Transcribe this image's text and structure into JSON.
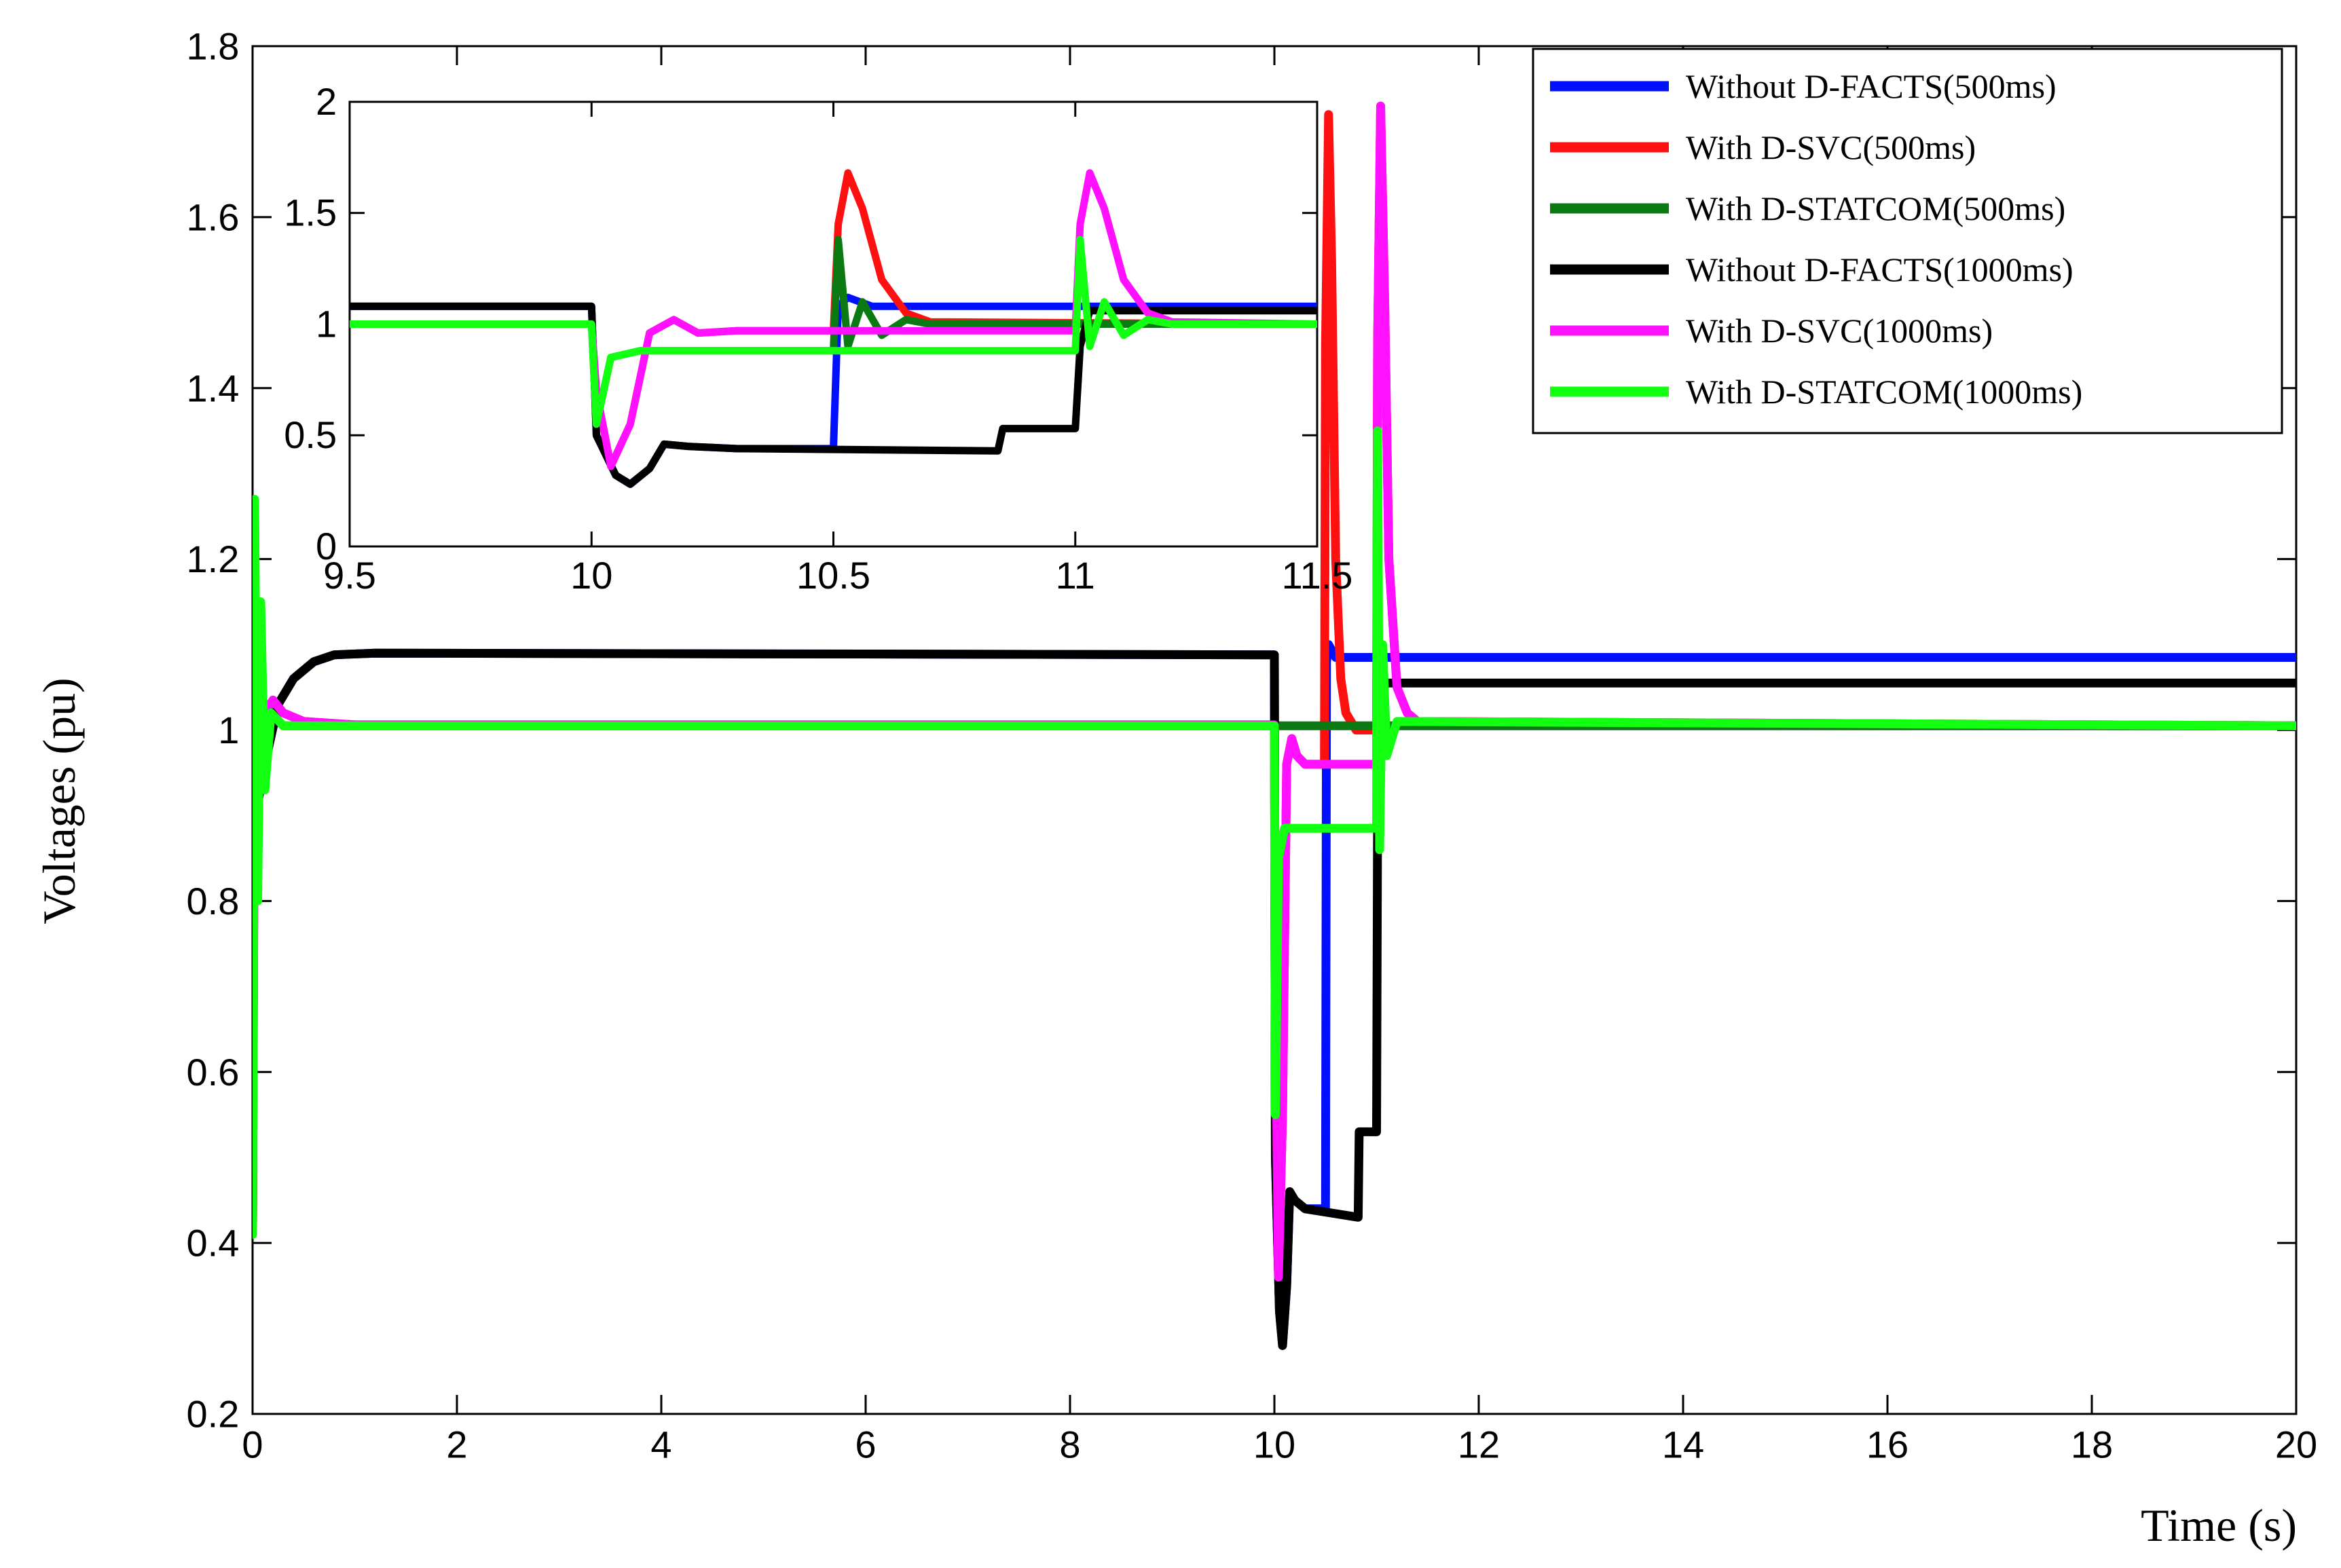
{
  "chart_data": {
    "type": "line",
    "xlabel": "Time (s)",
    "ylabel": "Voltages (pu)",
    "xlim": [
      0,
      20
    ],
    "ylim": [
      0.2,
      1.8
    ],
    "xticks": [
      0,
      2,
      4,
      6,
      8,
      10,
      12,
      14,
      16,
      18,
      20
    ],
    "yticks": [
      0.2,
      0.4,
      0.6,
      0.8,
      1,
      1.2,
      1.4,
      1.6,
      1.8
    ],
    "grid": false,
    "legend_position": "top-right",
    "series": [
      {
        "name": "Without D-FACTS(500ms)",
        "color": "#0010ff",
        "points": [
          [
            0,
            0.42
          ],
          [
            0.02,
            1.2
          ],
          [
            0.06,
            0.92
          ],
          [
            0.12,
            0.96
          ],
          [
            0.25,
            1.03
          ],
          [
            0.4,
            1.06
          ],
          [
            0.6,
            1.08
          ],
          [
            0.8,
            1.088
          ],
          [
            1.2,
            1.09
          ],
          [
            10.0,
            1.088
          ],
          [
            10.01,
            0.5
          ],
          [
            10.05,
            0.32
          ],
          [
            10.08,
            0.28
          ],
          [
            10.12,
            0.35
          ],
          [
            10.15,
            0.46
          ],
          [
            10.2,
            0.45
          ],
          [
            10.3,
            0.44
          ],
          [
            10.49,
            0.44
          ],
          [
            10.5,
            0.44
          ],
          [
            10.51,
            1.08
          ],
          [
            10.53,
            1.1
          ],
          [
            10.6,
            1.085
          ],
          [
            20,
            1.085
          ]
        ]
      },
      {
        "name": "With D-SVC(500ms)",
        "color": "#ff1010",
        "points": [
          [
            0,
            0.42
          ],
          [
            0.02,
            1.05
          ],
          [
            0.06,
            0.98
          ],
          [
            0.12,
            1.02
          ],
          [
            0.2,
            1.035
          ],
          [
            0.3,
            1.02
          ],
          [
            0.5,
            1.01
          ],
          [
            1.0,
            1.006
          ],
          [
            10.0,
            1.006
          ],
          [
            10.01,
            0.7
          ],
          [
            10.04,
            0.36
          ],
          [
            10.08,
            0.55
          ],
          [
            10.12,
            0.96
          ],
          [
            10.17,
            0.99
          ],
          [
            10.22,
            0.97
          ],
          [
            10.3,
            0.96
          ],
          [
            10.49,
            0.96
          ],
          [
            10.5,
            1.45
          ],
          [
            10.53,
            1.72
          ],
          [
            10.56,
            1.55
          ],
          [
            10.6,
            1.2
          ],
          [
            10.65,
            1.06
          ],
          [
            10.7,
            1.02
          ],
          [
            10.8,
            1.0
          ],
          [
            11.0,
            1.0
          ],
          [
            11.01,
            1.45
          ],
          [
            11.04,
            1.73
          ],
          [
            11.08,
            1.5
          ],
          [
            11.12,
            1.2
          ],
          [
            11.2,
            1.05
          ],
          [
            11.3,
            1.02
          ],
          [
            11.4,
            1.01
          ],
          [
            20,
            1.005
          ]
        ]
      },
      {
        "name": "With D-STATCOM(500ms)",
        "color": "#0b7a12",
        "points": [
          [
            0,
            0.42
          ],
          [
            0.02,
            1.25
          ],
          [
            0.05,
            0.82
          ],
          [
            0.08,
            1.12
          ],
          [
            0.12,
            0.95
          ],
          [
            0.18,
            1.02
          ],
          [
            0.3,
            1.005
          ],
          [
            20,
            1.005
          ]
        ]
      },
      {
        "name": "Without D-FACTS(1000ms)",
        "color": "#000000",
        "points": [
          [
            0,
            0.42
          ],
          [
            0.02,
            1.2
          ],
          [
            0.06,
            0.92
          ],
          [
            0.12,
            0.96
          ],
          [
            0.25,
            1.03
          ],
          [
            0.4,
            1.06
          ],
          [
            0.6,
            1.08
          ],
          [
            0.8,
            1.088
          ],
          [
            1.2,
            1.09
          ],
          [
            10.0,
            1.088
          ],
          [
            10.01,
            0.5
          ],
          [
            10.05,
            0.32
          ],
          [
            10.08,
            0.28
          ],
          [
            10.12,
            0.35
          ],
          [
            10.15,
            0.46
          ],
          [
            10.2,
            0.45
          ],
          [
            10.3,
            0.44
          ],
          [
            10.82,
            0.43
          ],
          [
            10.83,
            0.53
          ],
          [
            11.0,
            0.53
          ],
          [
            11.01,
            0.9
          ],
          [
            11.03,
            1.06
          ],
          [
            11.1,
            1.055
          ],
          [
            20,
            1.055
          ]
        ]
      },
      {
        "name": "With D-SVC(1000ms)",
        "color": "#ff10ff",
        "points": [
          [
            0,
            0.41
          ],
          [
            0.02,
            1.05
          ],
          [
            0.06,
            0.98
          ],
          [
            0.12,
            1.02
          ],
          [
            0.2,
            1.035
          ],
          [
            0.3,
            1.02
          ],
          [
            0.5,
            1.01
          ],
          [
            1.0,
            1.006
          ],
          [
            10.0,
            1.006
          ],
          [
            10.01,
            0.7
          ],
          [
            10.04,
            0.36
          ],
          [
            10.08,
            0.55
          ],
          [
            10.12,
            0.96
          ],
          [
            10.17,
            0.99
          ],
          [
            10.22,
            0.97
          ],
          [
            10.3,
            0.96
          ],
          [
            11.0,
            0.96
          ],
          [
            11.01,
            1.45
          ],
          [
            11.04,
            1.73
          ],
          [
            11.08,
            1.5
          ],
          [
            11.12,
            1.2
          ],
          [
            11.2,
            1.05
          ],
          [
            11.3,
            1.02
          ],
          [
            11.4,
            1.01
          ],
          [
            20,
            1.005
          ]
        ]
      },
      {
        "name": "With D-STATCOM(1000ms)",
        "color": "#12ff12",
        "points": [
          [
            0,
            0.41
          ],
          [
            0.02,
            1.27
          ],
          [
            0.05,
            0.8
          ],
          [
            0.08,
            1.15
          ],
          [
            0.12,
            0.93
          ],
          [
            0.18,
            1.02
          ],
          [
            0.3,
            1.005
          ],
          [
            10.0,
            1.005
          ],
          [
            10.01,
            0.55
          ],
          [
            10.04,
            0.85
          ],
          [
            10.1,
            0.885
          ],
          [
            11.0,
            0.885
          ],
          [
            11.01,
            1.35
          ],
          [
            11.03,
            0.86
          ],
          [
            11.06,
            1.1
          ],
          [
            11.1,
            0.97
          ],
          [
            11.2,
            1.01
          ],
          [
            20,
            1.005
          ]
        ]
      }
    ],
    "inset": {
      "xlim": [
        9.5,
        11.5
      ],
      "ylim": [
        0,
        2
      ],
      "xticks": [
        9.5,
        10,
        10.5,
        11,
        11.5
      ],
      "yticks": [
        0,
        0.5,
        1,
        1.5,
        2
      ],
      "series": [
        {
          "name": "Without D-FACTS(500ms)",
          "color": "#0010ff",
          "points": [
            [
              9.5,
              1.08
            ],
            [
              10.0,
              1.08
            ],
            [
              10.01,
              0.5
            ],
            [
              10.05,
              0.32
            ],
            [
              10.08,
              0.28
            ],
            [
              10.12,
              0.35
            ],
            [
              10.15,
              0.46
            ],
            [
              10.2,
              0.45
            ],
            [
              10.3,
              0.44
            ],
            [
              10.5,
              0.44
            ],
            [
              10.51,
              1.08
            ],
            [
              10.53,
              1.12
            ],
            [
              10.58,
              1.08
            ],
            [
              11.5,
              1.08
            ]
          ]
        },
        {
          "name": "With D-SVC(500ms)",
          "color": "#ff1010",
          "points": [
            [
              9.5,
              1.0
            ],
            [
              10.0,
              1.0
            ],
            [
              10.01,
              0.7
            ],
            [
              10.04,
              0.36
            ],
            [
              10.08,
              0.55
            ],
            [
              10.12,
              0.96
            ],
            [
              10.17,
              1.02
            ],
            [
              10.22,
              0.96
            ],
            [
              10.3,
              0.97
            ],
            [
              10.5,
              0.97
            ],
            [
              10.51,
              1.45
            ],
            [
              10.53,
              1.68
            ],
            [
              10.56,
              1.52
            ],
            [
              10.6,
              1.2
            ],
            [
              10.65,
              1.05
            ],
            [
              10.7,
              1.01
            ],
            [
              11.5,
              1.0
            ]
          ]
        },
        {
          "name": "With D-STATCOM(500ms)",
          "color": "#0b7a12",
          "points": [
            [
              9.5,
              1.0
            ],
            [
              10.0,
              1.0
            ],
            [
              10.01,
              0.55
            ],
            [
              10.04,
              0.85
            ],
            [
              10.1,
              0.88
            ],
            [
              10.5,
              0.88
            ],
            [
              10.51,
              1.38
            ],
            [
              10.53,
              0.9
            ],
            [
              10.56,
              1.1
            ],
            [
              10.6,
              0.95
            ],
            [
              10.65,
              1.02
            ],
            [
              10.7,
              1.0
            ],
            [
              11.5,
              1.0
            ]
          ]
        },
        {
          "name": "Without D-FACTS(1000ms)",
          "color": "#000000",
          "points": [
            [
              9.5,
              1.08
            ],
            [
              10.0,
              1.08
            ],
            [
              10.01,
              0.5
            ],
            [
              10.05,
              0.32
            ],
            [
              10.08,
              0.28
            ],
            [
              10.12,
              0.35
            ],
            [
              10.15,
              0.46
            ],
            [
              10.2,
              0.45
            ],
            [
              10.3,
              0.44
            ],
            [
              10.84,
              0.43
            ],
            [
              10.85,
              0.53
            ],
            [
              11.0,
              0.53
            ],
            [
              11.01,
              0.9
            ],
            [
              11.03,
              1.06
            ],
            [
              11.5,
              1.06
            ]
          ]
        },
        {
          "name": "With D-SVC(1000ms)",
          "color": "#ff10ff",
          "points": [
            [
              9.5,
              1.0
            ],
            [
              10.0,
              1.0
            ],
            [
              10.01,
              0.7
            ],
            [
              10.04,
              0.36
            ],
            [
              10.08,
              0.55
            ],
            [
              10.12,
              0.96
            ],
            [
              10.17,
              1.02
            ],
            [
              10.22,
              0.96
            ],
            [
              10.3,
              0.97
            ],
            [
              11.0,
              0.97
            ],
            [
              11.01,
              1.45
            ],
            [
              11.03,
              1.68
            ],
            [
              11.06,
              1.52
            ],
            [
              11.1,
              1.2
            ],
            [
              11.15,
              1.05
            ],
            [
              11.2,
              1.01
            ],
            [
              11.5,
              1.0
            ]
          ]
        },
        {
          "name": "With D-STATCOM(1000ms)",
          "color": "#12ff12",
          "points": [
            [
              9.5,
              1.0
            ],
            [
              10.0,
              1.0
            ],
            [
              10.01,
              0.55
            ],
            [
              10.04,
              0.85
            ],
            [
              10.1,
              0.88
            ],
            [
              11.0,
              0.88
            ],
            [
              11.01,
              1.38
            ],
            [
              11.03,
              0.9
            ],
            [
              11.06,
              1.1
            ],
            [
              11.1,
              0.95
            ],
            [
              11.15,
              1.02
            ],
            [
              11.2,
              1.0
            ],
            [
              11.5,
              1.0
            ]
          ]
        }
      ]
    }
  }
}
